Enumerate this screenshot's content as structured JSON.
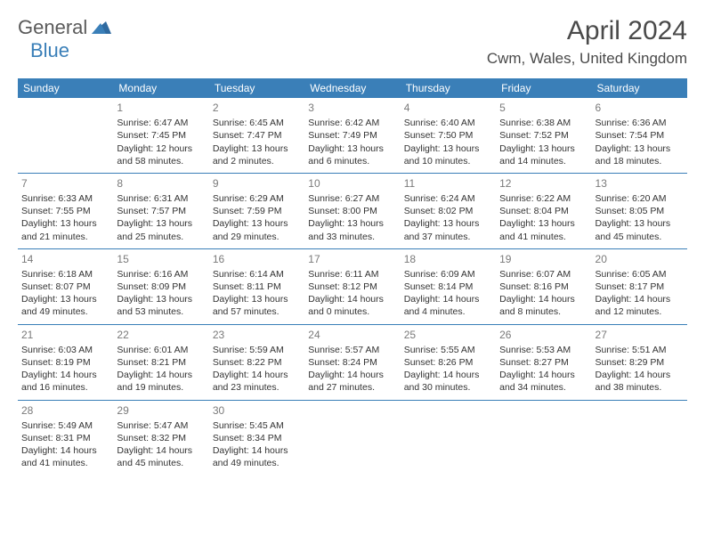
{
  "logo": {
    "part1": "General",
    "part2": "Blue"
  },
  "title": "April 2024",
  "location": "Cwm, Wales, United Kingdom",
  "colors": {
    "header_bg": "#3a7fb8",
    "header_fg": "#ffffff",
    "row_border": "#3a7fb8",
    "text": "#333333",
    "daynum": "#7a7a7a",
    "logo_gray": "#5a5a5a",
    "logo_blue": "#3a7fb8"
  },
  "day_headers": [
    "Sunday",
    "Monday",
    "Tuesday",
    "Wednesday",
    "Thursday",
    "Friday",
    "Saturday"
  ],
  "weeks": [
    [
      null,
      {
        "n": "1",
        "sunrise": "6:47 AM",
        "sunset": "7:45 PM",
        "daylight": "12 hours and 58 minutes."
      },
      {
        "n": "2",
        "sunrise": "6:45 AM",
        "sunset": "7:47 PM",
        "daylight": "13 hours and 2 minutes."
      },
      {
        "n": "3",
        "sunrise": "6:42 AM",
        "sunset": "7:49 PM",
        "daylight": "13 hours and 6 minutes."
      },
      {
        "n": "4",
        "sunrise": "6:40 AM",
        "sunset": "7:50 PM",
        "daylight": "13 hours and 10 minutes."
      },
      {
        "n": "5",
        "sunrise": "6:38 AM",
        "sunset": "7:52 PM",
        "daylight": "13 hours and 14 minutes."
      },
      {
        "n": "6",
        "sunrise": "6:36 AM",
        "sunset": "7:54 PM",
        "daylight": "13 hours and 18 minutes."
      }
    ],
    [
      {
        "n": "7",
        "sunrise": "6:33 AM",
        "sunset": "7:55 PM",
        "daylight": "13 hours and 21 minutes."
      },
      {
        "n": "8",
        "sunrise": "6:31 AM",
        "sunset": "7:57 PM",
        "daylight": "13 hours and 25 minutes."
      },
      {
        "n": "9",
        "sunrise": "6:29 AM",
        "sunset": "7:59 PM",
        "daylight": "13 hours and 29 minutes."
      },
      {
        "n": "10",
        "sunrise": "6:27 AM",
        "sunset": "8:00 PM",
        "daylight": "13 hours and 33 minutes."
      },
      {
        "n": "11",
        "sunrise": "6:24 AM",
        "sunset": "8:02 PM",
        "daylight": "13 hours and 37 minutes."
      },
      {
        "n": "12",
        "sunrise": "6:22 AM",
        "sunset": "8:04 PM",
        "daylight": "13 hours and 41 minutes."
      },
      {
        "n": "13",
        "sunrise": "6:20 AM",
        "sunset": "8:05 PM",
        "daylight": "13 hours and 45 minutes."
      }
    ],
    [
      {
        "n": "14",
        "sunrise": "6:18 AM",
        "sunset": "8:07 PM",
        "daylight": "13 hours and 49 minutes."
      },
      {
        "n": "15",
        "sunrise": "6:16 AM",
        "sunset": "8:09 PM",
        "daylight": "13 hours and 53 minutes."
      },
      {
        "n": "16",
        "sunrise": "6:14 AM",
        "sunset": "8:11 PM",
        "daylight": "13 hours and 57 minutes."
      },
      {
        "n": "17",
        "sunrise": "6:11 AM",
        "sunset": "8:12 PM",
        "daylight": "14 hours and 0 minutes."
      },
      {
        "n": "18",
        "sunrise": "6:09 AM",
        "sunset": "8:14 PM",
        "daylight": "14 hours and 4 minutes."
      },
      {
        "n": "19",
        "sunrise": "6:07 AM",
        "sunset": "8:16 PM",
        "daylight": "14 hours and 8 minutes."
      },
      {
        "n": "20",
        "sunrise": "6:05 AM",
        "sunset": "8:17 PM",
        "daylight": "14 hours and 12 minutes."
      }
    ],
    [
      {
        "n": "21",
        "sunrise": "6:03 AM",
        "sunset": "8:19 PM",
        "daylight": "14 hours and 16 minutes."
      },
      {
        "n": "22",
        "sunrise": "6:01 AM",
        "sunset": "8:21 PM",
        "daylight": "14 hours and 19 minutes."
      },
      {
        "n": "23",
        "sunrise": "5:59 AM",
        "sunset": "8:22 PM",
        "daylight": "14 hours and 23 minutes."
      },
      {
        "n": "24",
        "sunrise": "5:57 AM",
        "sunset": "8:24 PM",
        "daylight": "14 hours and 27 minutes."
      },
      {
        "n": "25",
        "sunrise": "5:55 AM",
        "sunset": "8:26 PM",
        "daylight": "14 hours and 30 minutes."
      },
      {
        "n": "26",
        "sunrise": "5:53 AM",
        "sunset": "8:27 PM",
        "daylight": "14 hours and 34 minutes."
      },
      {
        "n": "27",
        "sunrise": "5:51 AM",
        "sunset": "8:29 PM",
        "daylight": "14 hours and 38 minutes."
      }
    ],
    [
      {
        "n": "28",
        "sunrise": "5:49 AM",
        "sunset": "8:31 PM",
        "daylight": "14 hours and 41 minutes."
      },
      {
        "n": "29",
        "sunrise": "5:47 AM",
        "sunset": "8:32 PM",
        "daylight": "14 hours and 45 minutes."
      },
      {
        "n": "30",
        "sunrise": "5:45 AM",
        "sunset": "8:34 PM",
        "daylight": "14 hours and 49 minutes."
      },
      null,
      null,
      null,
      null
    ]
  ],
  "labels": {
    "sunrise": "Sunrise: ",
    "sunset": "Sunset: ",
    "daylight": "Daylight: "
  }
}
